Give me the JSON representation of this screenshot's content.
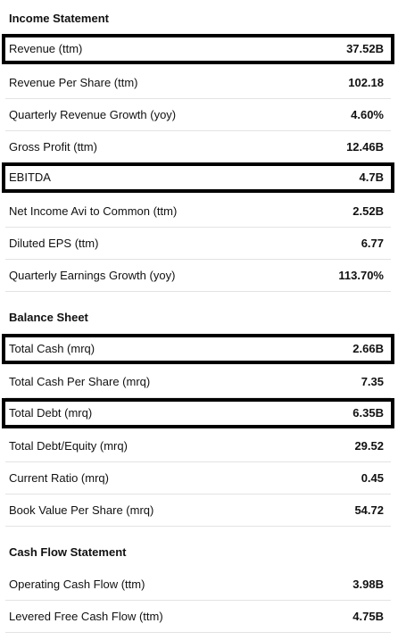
{
  "income_statement": {
    "title": "Income Statement",
    "rows": [
      {
        "label": "Revenue (ttm)",
        "value": "37.52B"
      },
      {
        "label": "Revenue Per Share (ttm)",
        "value": "102.18"
      },
      {
        "label": "Quarterly Revenue Growth (yoy)",
        "value": "4.60%"
      },
      {
        "label": "Gross Profit (ttm)",
        "value": "12.46B"
      },
      {
        "label": "EBITDA",
        "value": "4.7B"
      },
      {
        "label": "Net Income Avi to Common (ttm)",
        "value": "2.52B"
      },
      {
        "label": "Diluted EPS (ttm)",
        "value": "6.77"
      },
      {
        "label": "Quarterly Earnings Growth (yoy)",
        "value": "113.70%"
      }
    ]
  },
  "balance_sheet": {
    "title": "Balance Sheet",
    "rows": [
      {
        "label": "Total Cash (mrq)",
        "value": "2.66B"
      },
      {
        "label": "Total Cash Per Share (mrq)",
        "value": "7.35"
      },
      {
        "label": "Total Debt (mrq)",
        "value": "6.35B"
      },
      {
        "label": "Total Debt/Equity (mrq)",
        "value": "29.52"
      },
      {
        "label": "Current Ratio (mrq)",
        "value": "0.45"
      },
      {
        "label": "Book Value Per Share (mrq)",
        "value": "54.72"
      }
    ]
  },
  "cash_flow_statement": {
    "title": "Cash Flow Statement",
    "rows": [
      {
        "label": "Operating Cash Flow (ttm)",
        "value": "3.98B"
      },
      {
        "label": "Levered Free Cash Flow (ttm)",
        "value": "4.75B"
      }
    ]
  }
}
